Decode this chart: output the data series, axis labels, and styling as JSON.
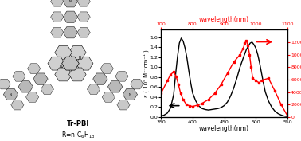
{
  "black_x": [
    350,
    355,
    360,
    365,
    370,
    373,
    376,
    379,
    382,
    385,
    388,
    391,
    394,
    397,
    400,
    405,
    410,
    415,
    420,
    425,
    430,
    435,
    440,
    445,
    450,
    455,
    460,
    465,
    470,
    475,
    480,
    485,
    488,
    491,
    494,
    497,
    500,
    503,
    506,
    509,
    512,
    515,
    520,
    525,
    530,
    535,
    540,
    545,
    550
  ],
  "black_y": [
    0.02,
    0.04,
    0.08,
    0.18,
    0.45,
    0.85,
    1.2,
    1.48,
    1.58,
    1.52,
    1.38,
    1.18,
    0.92,
    0.68,
    0.48,
    0.32,
    0.22,
    0.17,
    0.15,
    0.14,
    0.15,
    0.16,
    0.17,
    0.19,
    0.23,
    0.3,
    0.42,
    0.58,
    0.78,
    1.0,
    1.18,
    1.35,
    1.42,
    1.48,
    1.5,
    1.45,
    1.38,
    1.25,
    1.08,
    0.88,
    0.68,
    0.5,
    0.32,
    0.2,
    0.12,
    0.07,
    0.04,
    0.02,
    0.01
  ],
  "red_x_orig": [
    700,
    720,
    730,
    740,
    748,
    755,
    762,
    770,
    780,
    790,
    800,
    815,
    830,
    850,
    870,
    890,
    910,
    930,
    950,
    960,
    965,
    970,
    975,
    980,
    985,
    990,
    1000,
    1010,
    1020,
    1040,
    1060,
    1080,
    1100
  ],
  "red_y": [
    3800,
    5800,
    6800,
    7200,
    6500,
    5200,
    3800,
    2800,
    2000,
    1800,
    1700,
    1900,
    2200,
    2800,
    3800,
    5200,
    7000,
    8800,
    10000,
    11000,
    11800,
    12200,
    11500,
    10000,
    8000,
    6200,
    5800,
    5500,
    5900,
    6200,
    4200,
    2000,
    200
  ],
  "black_xlim": [
    350,
    550
  ],
  "black_ylim": [
    0.0,
    1.75
  ],
  "red_xlim": [
    700,
    1100
  ],
  "red_ylim": [
    0,
    14000
  ],
  "black_xlabel": "wavelength(nm)",
  "black_ylabel": "ε ( 10⁵ M⁻¹cm⁻¹ )",
  "red_xlabel": "wavelength(nm)",
  "red_ylabel": "δ₀ TPA ( G M )",
  "black_yticks": [
    0.0,
    0.2,
    0.4,
    0.6,
    0.8,
    1.0,
    1.2,
    1.4,
    1.6
  ],
  "black_xticks": [
    350,
    400,
    450,
    500,
    550
  ],
  "red_yticks": [
    0,
    2000,
    4000,
    6000,
    8000,
    10000,
    12000
  ],
  "red_xticks": [
    700,
    800,
    900,
    1000,
    1100
  ]
}
